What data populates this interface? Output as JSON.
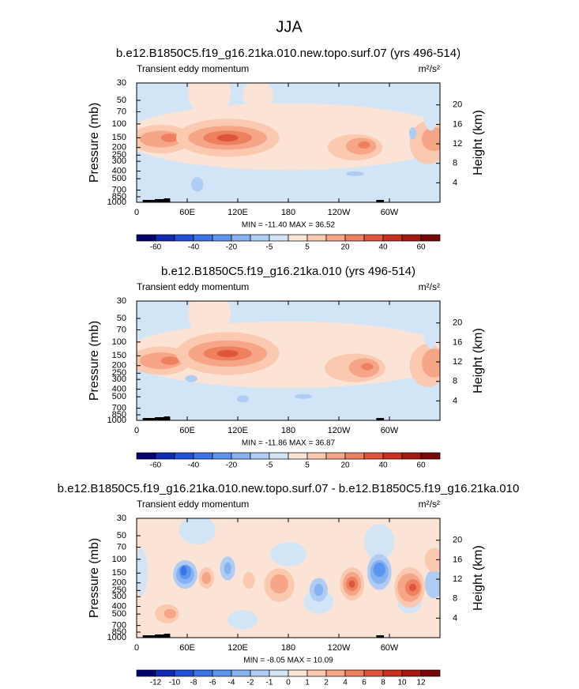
{
  "title": "JJA",
  "chart_data": [
    {
      "type": "contour",
      "title": "b.e12.B1850C5.f19_g16.21ka.010.new.topo.surf.07 (yrs 496-514)",
      "left_label": "Transient eddy momentum",
      "units": "m²/s²",
      "ylabel": "Pressure (mb)",
      "y2label": "Height (km)",
      "xlim": [
        0,
        360
      ],
      "xticks": [
        0,
        {
          "value": 60,
          "label": "60E"
        },
        {
          "value": 120,
          "label": "120E"
        },
        180,
        {
          "value": 240,
          "label": "120W"
        },
        {
          "value": 300,
          "label": "60W"
        }
      ],
      "ylim": [
        1000,
        30
      ],
      "ylog": true,
      "yticks": [
        30,
        50,
        70,
        100,
        150,
        200,
        250,
        300,
        400,
        500,
        700,
        850,
        1000
      ],
      "y2lim": [
        0,
        24.5
      ],
      "y2ticks": [
        4,
        8,
        12,
        16,
        20
      ],
      "stats": "MIN = -11.40  MAX = 36.52",
      "colorbar": {
        "levels": [
          -60,
          null,
          -40,
          null,
          -20,
          null,
          -5,
          null,
          5,
          null,
          20,
          null,
          40,
          null,
          60
        ],
        "colors": [
          "#03036f",
          "#0f2bb5",
          "#1e50d9",
          "#3a74e8",
          "#5c95ef",
          "#86b2f2",
          "#afcdf4",
          "#d2e5f7",
          "#fbe4d5",
          "#fbc8b0",
          "#f6a587",
          "#ee7f5f",
          "#e0543b",
          "#c9301f",
          "#a61910",
          "#7a0707"
        ]
      }
    },
    {
      "type": "contour",
      "title": "b.e12.B1850C5.f19_g16.21ka.010 (yrs 496-514)",
      "left_label": "Transient eddy momentum",
      "units": "m²/s²",
      "ylabel": "Pressure (mb)",
      "y2label": "Height (km)",
      "xlim": [
        0,
        360
      ],
      "xticks": [
        0,
        {
          "value": 60,
          "label": "60E"
        },
        {
          "value": 120,
          "label": "120E"
        },
        180,
        {
          "value": 240,
          "label": "120W"
        },
        {
          "value": 300,
          "label": "60W"
        }
      ],
      "ylim": [
        1000,
        30
      ],
      "ylog": true,
      "yticks": [
        30,
        50,
        70,
        100,
        150,
        200,
        250,
        300,
        400,
        500,
        700,
        850,
        1000
      ],
      "y2lim": [
        0,
        24.5
      ],
      "y2ticks": [
        4,
        8,
        12,
        16,
        20
      ],
      "stats": "MIN = -11.86  MAX = 36.87",
      "colorbar": {
        "levels": [
          -60,
          null,
          -40,
          null,
          -20,
          null,
          -5,
          null,
          5,
          null,
          20,
          null,
          40,
          null,
          60
        ],
        "colors": [
          "#03036f",
          "#0f2bb5",
          "#1e50d9",
          "#3a74e8",
          "#5c95ef",
          "#86b2f2",
          "#afcdf4",
          "#d2e5f7",
          "#fbe4d5",
          "#fbc8b0",
          "#f6a587",
          "#ee7f5f",
          "#e0543b",
          "#c9301f",
          "#a61910",
          "#7a0707"
        ]
      }
    },
    {
      "type": "contour",
      "title": "b.e12.B1850C5.f19_g16.21ka.010.new.topo.surf.07 - b.e12.B1850C5.f19_g16.21ka.010",
      "left_label": "Transient eddy momentum",
      "units": "m²/s²",
      "ylabel": "Pressure (mb)",
      "y2label": "Height (km)",
      "xlim": [
        0,
        360
      ],
      "xticks": [
        0,
        {
          "value": 60,
          "label": "60E"
        },
        {
          "value": 120,
          "label": "120E"
        },
        180,
        {
          "value": 240,
          "label": "120W"
        },
        {
          "value": 300,
          "label": "60W"
        }
      ],
      "ylim": [
        1000,
        30
      ],
      "ylog": true,
      "yticks": [
        30,
        50,
        70,
        100,
        150,
        200,
        250,
        300,
        400,
        500,
        700,
        850,
        1000
      ],
      "y2lim": [
        0,
        24.5
      ],
      "y2ticks": [
        4,
        8,
        12,
        16,
        20
      ],
      "stats": "MIN = -8.05  MAX = 10.09",
      "colorbar": {
        "levels": [
          -12,
          -10,
          -8,
          -6,
          -4,
          -2,
          -1,
          0,
          1,
          2,
          4,
          6,
          8,
          10,
          12
        ],
        "colors": [
          "#03036f",
          "#0f2bb5",
          "#1e50d9",
          "#3a74e8",
          "#5c95ef",
          "#86b2f2",
          "#afcdf4",
          "#d2e5f7",
          "#fbe4d5",
          "#fbc8b0",
          "#f6a587",
          "#ee7f5f",
          "#e0543b",
          "#c9301f",
          "#a61910",
          "#7a0707"
        ]
      }
    }
  ]
}
